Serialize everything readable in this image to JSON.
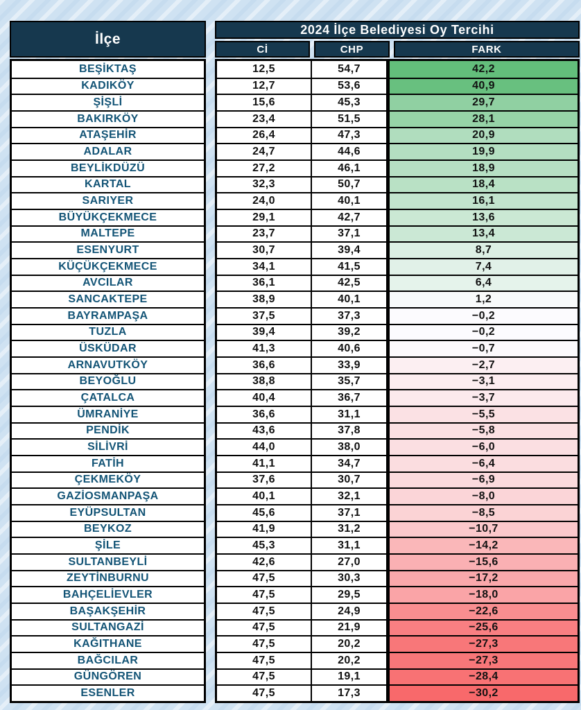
{
  "page": {
    "background_color": "#cfe2f2",
    "stripe_pattern": "diagonal-light-stripes"
  },
  "table": {
    "ilce_header": "İlçe",
    "title": "2024 İlçe Belediyesi Oy Tercihi",
    "columns": [
      "Cİ",
      "CHP",
      "FARK"
    ],
    "header_bg": "#16384e",
    "header_text_color": "#ffffff",
    "district_text_color": "#135476",
    "value_text_color": "#111111",
    "fark_color_scale": {
      "max_green": "#63BE7B",
      "mid_white": "#FCFCFF",
      "min_red": "#F8696B"
    },
    "rows": [
      {
        "ilce": "BEŞİKTAŞ",
        "ci": "12,5",
        "chp": "54,7",
        "fark": "42,2"
      },
      {
        "ilce": "KADIKÖY",
        "ci": "12,7",
        "chp": "53,6",
        "fark": "40,9"
      },
      {
        "ilce": "ŞİŞLİ",
        "ci": "15,6",
        "chp": "45,3",
        "fark": "29,7"
      },
      {
        "ilce": "BAKIRKÖY",
        "ci": "23,4",
        "chp": "51,5",
        "fark": "28,1"
      },
      {
        "ilce": "ATAŞEHİR",
        "ci": "26,4",
        "chp": "47,3",
        "fark": "20,9"
      },
      {
        "ilce": "ADALAR",
        "ci": "24,7",
        "chp": "44,6",
        "fark": "19,9"
      },
      {
        "ilce": "BEYLİKDÜZÜ",
        "ci": "27,2",
        "chp": "46,1",
        "fark": "18,9"
      },
      {
        "ilce": "KARTAL",
        "ci": "32,3",
        "chp": "50,7",
        "fark": "18,4"
      },
      {
        "ilce": "SARIYER",
        "ci": "24,0",
        "chp": "40,1",
        "fark": "16,1"
      },
      {
        "ilce": "BÜYÜKÇEKMECE",
        "ci": "29,1",
        "chp": "42,7",
        "fark": "13,6"
      },
      {
        "ilce": "MALTEPE",
        "ci": "23,7",
        "chp": "37,1",
        "fark": "13,4"
      },
      {
        "ilce": "ESENYURT",
        "ci": "30,7",
        "chp": "39,4",
        "fark": "8,7"
      },
      {
        "ilce": "KÜÇÜKÇEKMECE",
        "ci": "34,1",
        "chp": "41,5",
        "fark": "7,4"
      },
      {
        "ilce": "AVCILAR",
        "ci": "36,1",
        "chp": "42,5",
        "fark": "6,4"
      },
      {
        "ilce": "SANCAKTEPE",
        "ci": "38,9",
        "chp": "40,1",
        "fark": "1,2"
      },
      {
        "ilce": "BAYRAMPAŞA",
        "ci": "37,5",
        "chp": "37,3",
        "fark": "−0,2"
      },
      {
        "ilce": "TUZLA",
        "ci": "39,4",
        "chp": "39,2",
        "fark": "−0,2"
      },
      {
        "ilce": "ÜSKÜDAR",
        "ci": "41,3",
        "chp": "40,6",
        "fark": "−0,7"
      },
      {
        "ilce": "ARNAVUTKÖY",
        "ci": "36,6",
        "chp": "33,9",
        "fark": "−2,7"
      },
      {
        "ilce": "BEYOĞLU",
        "ci": "38,8",
        "chp": "35,7",
        "fark": "−3,1"
      },
      {
        "ilce": "ÇATALCA",
        "ci": "40,4",
        "chp": "36,7",
        "fark": "−3,7"
      },
      {
        "ilce": "ÜMRANİYE",
        "ci": "36,6",
        "chp": "31,1",
        "fark": "−5,5"
      },
      {
        "ilce": "PENDİK",
        "ci": "43,6",
        "chp": "37,8",
        "fark": "−5,8"
      },
      {
        "ilce": "SİLİVRİ",
        "ci": "44,0",
        "chp": "38,0",
        "fark": "−6,0"
      },
      {
        "ilce": "FATİH",
        "ci": "41,1",
        "chp": "34,7",
        "fark": "−6,4"
      },
      {
        "ilce": "ÇEKMEKÖY",
        "ci": "37,6",
        "chp": "30,7",
        "fark": "−6,9"
      },
      {
        "ilce": "GAZİOSMANPAŞA",
        "ci": "40,1",
        "chp": "32,1",
        "fark": "−8,0"
      },
      {
        "ilce": "EYÜPSULTAN",
        "ci": "45,6",
        "chp": "37,1",
        "fark": "−8,5"
      },
      {
        "ilce": "BEYKOZ",
        "ci": "41,9",
        "chp": "31,2",
        "fark": "−10,7"
      },
      {
        "ilce": "ŞİLE",
        "ci": "45,3",
        "chp": "31,1",
        "fark": "−14,2"
      },
      {
        "ilce": "SULTANBEYLİ",
        "ci": "42,6",
        "chp": "27,0",
        "fark": "−15,6"
      },
      {
        "ilce": "ZEYTİNBURNU",
        "ci": "47,5",
        "chp": "30,3",
        "fark": "−17,2"
      },
      {
        "ilce": "BAHÇELİEVLER",
        "ci": "47,5",
        "chp": "29,5",
        "fark": "−18,0"
      },
      {
        "ilce": "BAŞAKŞEHİR",
        "ci": "47,5",
        "chp": "24,9",
        "fark": "−22,6"
      },
      {
        "ilce": "SULTANGAZİ",
        "ci": "47,5",
        "chp": "21,9",
        "fark": "−25,6"
      },
      {
        "ilce": "KAĞITHANE",
        "ci": "47,5",
        "chp": "20,2",
        "fark": "−27,3"
      },
      {
        "ilce": "BAĞCILAR",
        "ci": "47,5",
        "chp": "20,2",
        "fark": "−27,3"
      },
      {
        "ilce": "GÜNGÖREN",
        "ci": "47,5",
        "chp": "19,1",
        "fark": "−28,4"
      },
      {
        "ilce": "ESENLER",
        "ci": "47,5",
        "chp": "17,3",
        "fark": "−30,2"
      }
    ]
  }
}
